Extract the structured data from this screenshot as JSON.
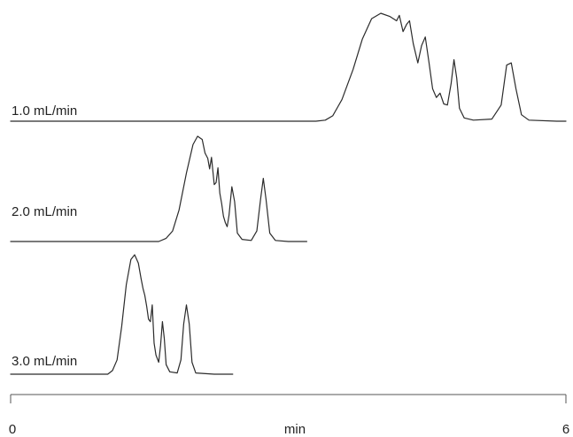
{
  "chart_data": {
    "type": "line",
    "title": "",
    "xlabel": "min",
    "ylabel": "",
    "xlim": [
      0,
      6
    ],
    "xticks": [
      "0",
      "6"
    ],
    "grid": false,
    "legend": "none",
    "series_color": "#2b2b2b",
    "series": [
      {
        "name": "1.0 mL/min",
        "points": [
          [
            0.0,
            0.0
          ],
          [
            3.3,
            0.0
          ],
          [
            3.4,
            0.01
          ],
          [
            3.48,
            0.05
          ],
          [
            3.58,
            0.2
          ],
          [
            3.7,
            0.48
          ],
          [
            3.8,
            0.76
          ],
          [
            3.9,
            0.95
          ],
          [
            4.0,
            1.0
          ],
          [
            4.1,
            0.97
          ],
          [
            4.17,
            0.93
          ],
          [
            4.2,
            0.98
          ],
          [
            4.24,
            0.83
          ],
          [
            4.28,
            0.9
          ],
          [
            4.31,
            0.93
          ],
          [
            4.35,
            0.72
          ],
          [
            4.4,
            0.54
          ],
          [
            4.44,
            0.7
          ],
          [
            4.48,
            0.78
          ],
          [
            4.52,
            0.55
          ],
          [
            4.56,
            0.3
          ],
          [
            4.6,
            0.22
          ],
          [
            4.64,
            0.26
          ],
          [
            4.68,
            0.16
          ],
          [
            4.72,
            0.15
          ],
          [
            4.76,
            0.35
          ],
          [
            4.79,
            0.57
          ],
          [
            4.82,
            0.4
          ],
          [
            4.85,
            0.12
          ],
          [
            4.9,
            0.03
          ],
          [
            5.0,
            0.01
          ],
          [
            5.2,
            0.02
          ],
          [
            5.3,
            0.15
          ],
          [
            5.36,
            0.52
          ],
          [
            5.41,
            0.54
          ],
          [
            5.46,
            0.3
          ],
          [
            5.52,
            0.06
          ],
          [
            5.6,
            0.01
          ],
          [
            5.9,
            0.0
          ],
          [
            6.0,
            0.0
          ]
        ]
      },
      {
        "name": "2.0 mL/min",
        "points": [
          [
            0.0,
            0.0
          ],
          [
            1.6,
            0.0
          ],
          [
            1.68,
            0.03
          ],
          [
            1.75,
            0.1
          ],
          [
            1.82,
            0.3
          ],
          [
            1.9,
            0.65
          ],
          [
            1.97,
            0.92
          ],
          [
            2.02,
            1.0
          ],
          [
            2.07,
            0.97
          ],
          [
            2.1,
            0.84
          ],
          [
            2.13,
            0.79
          ],
          [
            2.15,
            0.69
          ],
          [
            2.17,
            0.8
          ],
          [
            2.2,
            0.54
          ],
          [
            2.22,
            0.56
          ],
          [
            2.24,
            0.7
          ],
          [
            2.26,
            0.46
          ],
          [
            2.28,
            0.36
          ],
          [
            2.3,
            0.24
          ],
          [
            2.32,
            0.18
          ],
          [
            2.34,
            0.14
          ],
          [
            2.36,
            0.25
          ],
          [
            2.39,
            0.52
          ],
          [
            2.42,
            0.38
          ],
          [
            2.45,
            0.08
          ],
          [
            2.5,
            0.02
          ],
          [
            2.6,
            0.01
          ],
          [
            2.66,
            0.1
          ],
          [
            2.7,
            0.4
          ],
          [
            2.73,
            0.6
          ],
          [
            2.76,
            0.4
          ],
          [
            2.8,
            0.08
          ],
          [
            2.86,
            0.01
          ],
          [
            3.0,
            0.0
          ],
          [
            3.2,
            0.0
          ]
        ]
      },
      {
        "name": "3.0 mL/min",
        "points": [
          [
            0.0,
            0.0
          ],
          [
            1.05,
            0.0
          ],
          [
            1.1,
            0.03
          ],
          [
            1.15,
            0.12
          ],
          [
            1.2,
            0.4
          ],
          [
            1.25,
            0.75
          ],
          [
            1.3,
            0.96
          ],
          [
            1.34,
            1.0
          ],
          [
            1.38,
            0.93
          ],
          [
            1.41,
            0.8
          ],
          [
            1.43,
            0.72
          ],
          [
            1.45,
            0.66
          ],
          [
            1.47,
            0.57
          ],
          [
            1.49,
            0.46
          ],
          [
            1.51,
            0.44
          ],
          [
            1.53,
            0.58
          ],
          [
            1.55,
            0.26
          ],
          [
            1.57,
            0.16
          ],
          [
            1.6,
            0.1
          ],
          [
            1.62,
            0.24
          ],
          [
            1.64,
            0.44
          ],
          [
            1.66,
            0.3
          ],
          [
            1.68,
            0.08
          ],
          [
            1.72,
            0.02
          ],
          [
            1.8,
            0.01
          ],
          [
            1.84,
            0.12
          ],
          [
            1.87,
            0.42
          ],
          [
            1.9,
            0.58
          ],
          [
            1.93,
            0.42
          ],
          [
            1.96,
            0.1
          ],
          [
            2.0,
            0.01
          ],
          [
            2.2,
            0.0
          ],
          [
            2.4,
            0.0
          ]
        ]
      }
    ]
  }
}
